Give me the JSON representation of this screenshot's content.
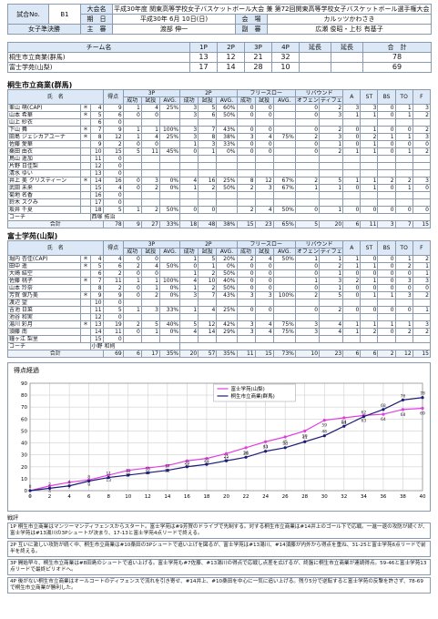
{
  "header": {
    "match_no_label": "試合No.",
    "match_no": "B1",
    "tournament_label": "大会名",
    "tournament": "平成30年度 関東高等学校女子バスケットボール大会 兼 第72回関東高等学校女子バスケットボール選手権大会",
    "date_label": "期　日",
    "date": "平成30年 6月 10日(日)",
    "venue_label": "会　場",
    "venue": "カルッツかわさき",
    "round": "女子準決勝",
    "referee_label": "主　審",
    "referee": "渡部 伸一",
    "umpire_label": "副　審",
    "umpires": "広瀬 俊昭・上杉 有基子"
  },
  "score_table": {
    "headers": [
      "チーム名",
      "1P",
      "2P",
      "3P",
      "4P",
      "延長",
      "延長",
      "合　計"
    ],
    "rows": [
      {
        "quarters": [
          13,
          12,
          21,
          32
        ],
        "total": 78
      },
      {
        "quarters": [
          17,
          14,
          28,
          10
        ],
        "total": 69
      }
    ]
  },
  "box_columns": {
    "name": "氏　名",
    "points": "得点",
    "groups": [
      "3P",
      "2P",
      "フリースロー",
      "リバウンド"
    ],
    "sub": [
      "成功",
      "試投",
      "AVG."
    ],
    "reb_sub": [
      "オフェンス",
      "ディフェンス"
    ],
    "tail": [
      "A",
      "ST",
      "BS",
      "TO",
      "F"
    ],
    "coach_label": "コーチ",
    "total_label": "合計"
  },
  "teams": [
    {
      "name": "桐生市立商業(群馬)",
      "coach": "西塚 拓治",
      "players": [
        [
          "峯山 萌(CAP)",
          "＊",
          4,
          9,
          1,
          4,
          "25%",
          3,
          5,
          "60%",
          0,
          0,
          null,
          0,
          2,
          3,
          3,
          0,
          1,
          3
        ],
        [
          "山本 希華",
          "＊",
          5,
          6,
          0,
          0,
          null,
          3,
          6,
          "50%",
          0,
          0,
          null,
          0,
          3,
          1,
          1,
          0,
          1,
          2
        ],
        [
          "山上 紗衣",
          null,
          6,
          0,
          null,
          null,
          null,
          null,
          null,
          null,
          null,
          null,
          null,
          null,
          null,
          null,
          null,
          null,
          null,
          null
        ],
        [
          "下山 舞",
          "＊",
          7,
          9,
          1,
          1,
          "100%",
          3,
          7,
          "43%",
          0,
          0,
          null,
          0,
          2,
          0,
          1,
          0,
          0,
          2
        ],
        [
          "田島 ジェシカアユーナ",
          "＊",
          8,
          12,
          1,
          4,
          "25%",
          3,
          8,
          "38%",
          3,
          4,
          "75%",
          2,
          3,
          0,
          2,
          1,
          1,
          3
        ],
        [
          "佐藤 愛華",
          null,
          9,
          2,
          0,
          0,
          null,
          1,
          3,
          "33%",
          0,
          0,
          null,
          0,
          1,
          0,
          1,
          0,
          0,
          0
        ],
        [
          "桑田 由衣",
          null,
          10,
          15,
          5,
          11,
          "45%",
          0,
          1,
          "0%",
          0,
          0,
          null,
          0,
          2,
          1,
          1,
          0,
          1,
          2
        ],
        [
          "鳥山 遥加",
          null,
          11,
          0,
          null,
          null,
          null,
          null,
          null,
          null,
          null,
          null,
          null,
          null,
          null,
          null,
          null,
          null,
          null,
          null
        ],
        [
          "片野 日佳梨",
          null,
          12,
          0,
          null,
          null,
          null,
          null,
          null,
          null,
          null,
          null,
          null,
          null,
          null,
          null,
          null,
          null,
          null,
          null
        ],
        [
          "清水 ゆい",
          null,
          13,
          0,
          null,
          null,
          null,
          null,
          null,
          null,
          null,
          null,
          null,
          null,
          null,
          null,
          null,
          null,
          null,
          null
        ],
        [
          "井上 美 クリスティーン",
          "＊",
          14,
          16,
          0,
          3,
          "0%",
          4,
          16,
          "25%",
          8,
          12,
          "67%",
          2,
          5,
          1,
          1,
          2,
          2,
          3
        ],
        [
          "武田 未来",
          null,
          15,
          4,
          0,
          2,
          "0%",
          1,
          2,
          "50%",
          2,
          3,
          "67%",
          1,
          1,
          0,
          1,
          0,
          1,
          0
        ],
        [
          "菊地 名香",
          null,
          16,
          0,
          null,
          null,
          null,
          null,
          null,
          null,
          null,
          null,
          null,
          null,
          null,
          null,
          null,
          null,
          null,
          null
        ],
        [
          "鈴木 スクみ",
          null,
          17,
          0,
          null,
          null,
          null,
          null,
          null,
          null,
          null,
          null,
          null,
          null,
          null,
          null,
          null,
          null,
          null,
          null
        ],
        [
          "坂井 千夏",
          null,
          18,
          5,
          1,
          2,
          "50%",
          0,
          0,
          null,
          2,
          4,
          "50%",
          0,
          1,
          0,
          0,
          0,
          0,
          0
        ]
      ],
      "total": [
        78,
        9,
        27,
        "33%",
        18,
        48,
        "38%",
        15,
        23,
        "65%",
        5,
        20,
        6,
        11,
        3,
        7,
        15
      ]
    },
    {
      "name": "富士学苑(山梨)",
      "coach": "小野 和則",
      "players": [
        [
          "堀内 杏佳(CAP)",
          "＊",
          4,
          4,
          0,
          0,
          null,
          1,
          5,
          "20%",
          2,
          4,
          "50%",
          1,
          1,
          1,
          0,
          0,
          1,
          2
        ],
        [
          "田中 遥",
          "＊",
          5,
          6,
          2,
          4,
          "50%",
          0,
          1,
          "0%",
          0,
          0,
          null,
          0,
          2,
          1,
          1,
          0,
          2,
          1
        ],
        [
          "大崎 結空",
          null,
          6,
          2,
          0,
          0,
          null,
          1,
          2,
          "50%",
          0,
          0,
          null,
          0,
          1,
          0,
          0,
          0,
          0,
          1
        ],
        [
          "佐藤 桃子",
          "＊",
          7,
          11,
          1,
          1,
          "100%",
          4,
          10,
          "40%",
          0,
          0,
          null,
          1,
          3,
          2,
          1,
          0,
          3,
          3
        ],
        [
          "山本 玲奈",
          null,
          8,
          2,
          0,
          1,
          "0%",
          1,
          2,
          "50%",
          0,
          0,
          null,
          0,
          1,
          0,
          0,
          0,
          0,
          0
        ],
        [
          "芳賀 保乃美",
          "＊",
          9,
          9,
          0,
          2,
          "0%",
          3,
          7,
          "43%",
          3,
          3,
          "100%",
          2,
          5,
          0,
          1,
          1,
          3,
          2
        ],
        [
          "渡辺 望",
          null,
          10,
          0,
          null,
          null,
          null,
          null,
          null,
          null,
          null,
          null,
          null,
          null,
          null,
          null,
          null,
          null,
          null,
          null
        ],
        [
          "吉池 日菜",
          null,
          11,
          5,
          1,
          3,
          "33%",
          1,
          4,
          "25%",
          0,
          0,
          null,
          0,
          2,
          0,
          0,
          0,
          0,
          1
        ],
        [
          "池谷 和実",
          null,
          12,
          0,
          null,
          null,
          null,
          null,
          null,
          null,
          null,
          null,
          null,
          null,
          null,
          null,
          null,
          null,
          null,
          null
        ],
        [
          "湯川 彩月",
          "＊",
          13,
          19,
          2,
          5,
          "40%",
          5,
          12,
          "42%",
          3,
          4,
          "75%",
          3,
          4,
          1,
          1,
          1,
          1,
          3
        ],
        [
          "須藤 南",
          null,
          14,
          11,
          0,
          1,
          "0%",
          4,
          14,
          "29%",
          3,
          4,
          "75%",
          3,
          4,
          1,
          2,
          0,
          2,
          2
        ],
        [
          "鐘ヶ江 梨里",
          null,
          15,
          0,
          null,
          null,
          null,
          null,
          null,
          null,
          null,
          null,
          null,
          null,
          null,
          null,
          null,
          null,
          null,
          null
        ]
      ],
      "total": [
        69,
        6,
        17,
        "35%",
        20,
        57,
        "35%",
        11,
        15,
        "73%",
        10,
        23,
        6,
        6,
        2,
        12,
        15
      ]
    }
  ],
  "chart_data": {
    "type": "line",
    "title": "得点経過",
    "x": [
      0,
      2,
      4,
      6,
      8,
      10,
      12,
      14,
      16,
      18,
      20,
      22,
      24,
      26,
      28,
      30,
      32,
      34,
      36,
      38,
      40
    ],
    "xlim": [
      0,
      40
    ],
    "xticks": [
      0,
      2,
      4,
      6,
      8,
      10,
      12,
      14,
      16,
      18,
      20,
      22,
      24,
      26,
      28,
      30,
      32,
      34,
      36,
      38,
      40
    ],
    "ylim": [
      0,
      90
    ],
    "yticks": [
      0,
      10,
      20,
      30,
      40,
      50,
      60,
      70,
      80,
      90
    ],
    "grid": true,
    "legend": "top",
    "series": [
      {
        "name": "富士学苑(山梨)",
        "color": "#e23ee0",
        "values": [
          0,
          4,
          7,
          9,
          13,
          17,
          19,
          21,
          25,
          27,
          31,
          36,
          41,
          45,
          50,
          59,
          61,
          63,
          64,
          68,
          69
        ]
      },
      {
        "name": "桐生市立商業(群馬)",
        "color": "#1c1c78",
        "values": [
          0,
          2,
          4,
          8,
          11,
          13,
          15,
          17,
          20,
          22,
          25,
          28,
          33,
          36,
          41,
          46,
          54,
          62,
          68,
          76,
          78
        ]
      }
    ]
  },
  "notes": {
    "title": "戦評",
    "paragraphs": [
      "1P 桐生市立商業はマンツーマンディフェンスからスタート。富士学苑は#9芳賀のドライブで先制する。対する桐生市立商業は#14井上のゴール下で応戦。一進一退の攻防が続くが、富士学苑は#13湯川の3Pシュートが決まり、17-13と富士学苑4点リードで終える。",
      "2P 互いに激しい攻防が続く中、桐生市立商業は#10桑田の3Pシュートで追い上げを図るが、富士学苑は#13湯川、#14須藤が内外から得点を重ね、31-25と富士学苑6点リードで前半を終える。",
      "3P 開始早々、桐生市立商業は#8田島のシュートで追い上げる。富士学苑も#7佐藤、#13湯川の得点で応戦し点差を広げるが、終盤に桐生市立商業が連続得点。59-46と富士学苑13点リードで最終ピリオドへ。",
      "4P 後がない桐生市立商業はオールコートのディフェンスで流れを引き寄せ、#14井上、#10桑田を中心に一気に追い上げる。残り5分で逆転すると富士学苑の反撃を許さず、78-69で桐生市立商業が勝利した。"
    ]
  }
}
